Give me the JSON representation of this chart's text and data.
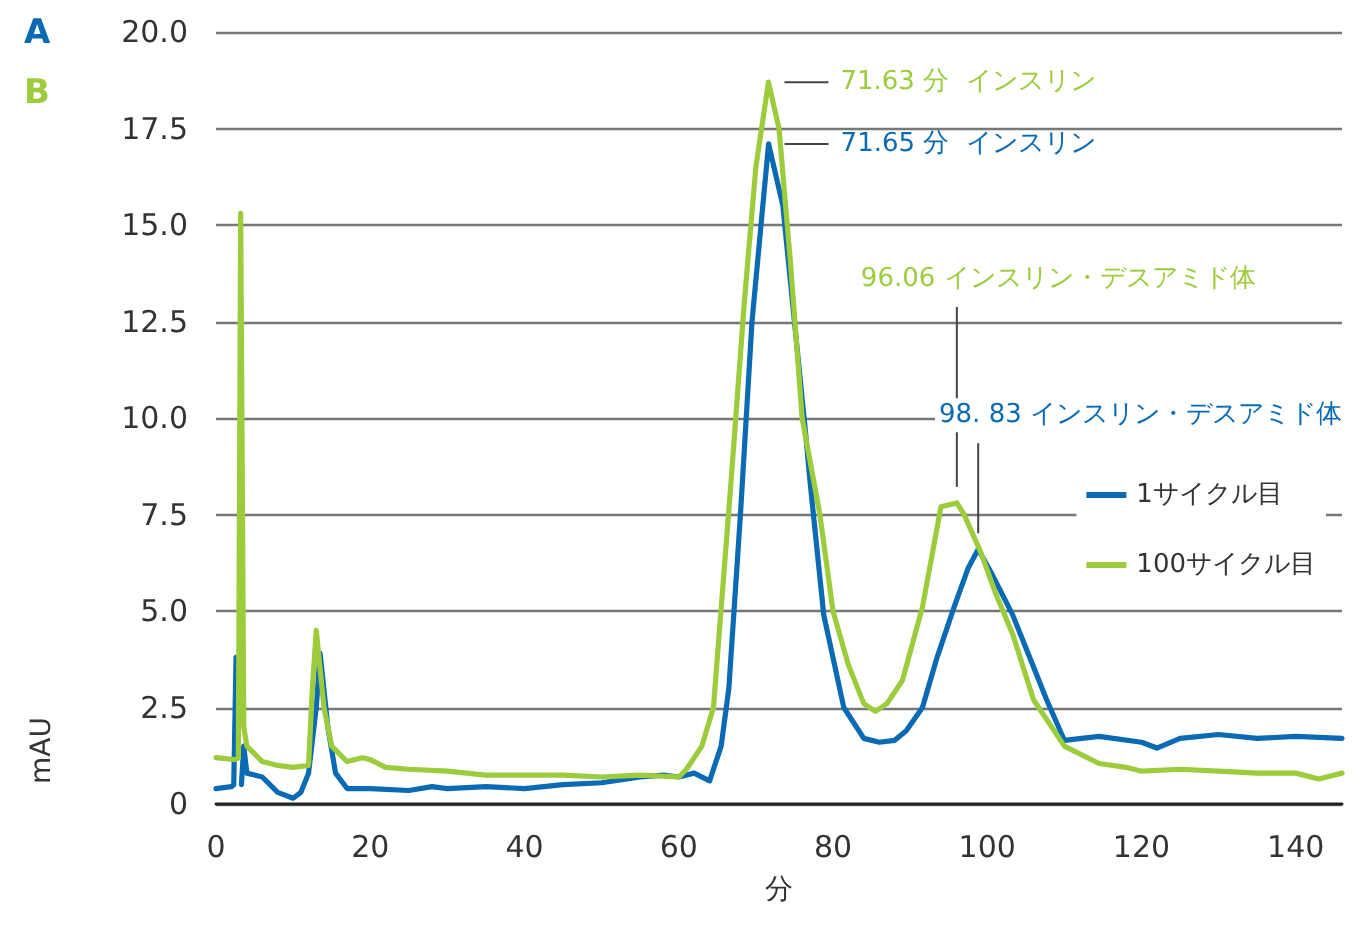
{
  "chart_data": {
    "type": "line",
    "xlabel": "分",
    "ylabel": "mAU",
    "xlim": [
      0,
      146
    ],
    "xticks": [
      0,
      20,
      40,
      60,
      80,
      100,
      120,
      140
    ],
    "ylim": [
      0,
      20
    ],
    "yticks": [
      {
        "value": 0,
        "label": "0"
      },
      {
        "value": 2.5,
        "label": "2.5"
      },
      {
        "value": 5,
        "label": "5.0"
      },
      {
        "value": 7.5,
        "label": "7.5"
      },
      {
        "value": 10,
        "label": "10.0"
      },
      {
        "value": 12.5,
        "label": "12.5"
      },
      {
        "value": 15,
        "label": "15.0"
      },
      {
        "value": 17.5,
        "label": "17.5"
      },
      {
        "value": 20,
        "label": "20.0"
      }
    ],
    "grid": "y",
    "legend": "right",
    "marker": "none",
    "line_style": "solid",
    "annotations": [
      "A",
      "B",
      {
        "text": "71.63 分  インスリン",
        "x": 71.63,
        "y": 18.7
      },
      {
        "text": "71.65 分  インスリン",
        "x": 71.65,
        "y": 17.1
      },
      {
        "text": "96.06 インスリン・デスアミド体",
        "x": 96.06,
        "y": 7.8
      },
      {
        "text": "98. 83 インスリン・デスアミド体",
        "x": 98.83,
        "y": 6.6
      }
    ],
    "series": [
      {
        "name": "1サイクル目",
        "color": "#0a6ab4",
        "x": [
          0,
          2,
          2.3,
          2.6,
          2.8,
          3.3,
          3.6,
          4,
          6,
          8,
          10,
          11,
          12,
          13,
          13.5,
          14.5,
          15.5,
          17,
          20,
          25,
          28,
          30,
          35,
          40,
          45,
          50,
          55,
          58,
          60,
          62,
          64,
          65.5,
          66.5,
          68,
          69.5,
          71.65,
          73.5,
          75,
          76.5,
          77,
          78.8,
          81.4,
          84,
          86,
          88,
          89.5,
          91.6,
          93.5,
          95.7,
          97.5,
          98.83,
          100.5,
          103.3,
          105.5,
          107.7,
          110,
          114.5,
          120,
          122,
          125,
          130,
          135,
          140,
          146
        ],
        "values": [
          0.4,
          0.45,
          0.5,
          3.8,
          null,
          0.5,
          1.5,
          0.8,
          0.7,
          0.3,
          0.15,
          0.3,
          0.8,
          2.5,
          3.9,
          2,
          0.8,
          0.4,
          0.4,
          0.35,
          0.45,
          0.4,
          0.45,
          0.4,
          0.5,
          0.55,
          0.7,
          0.75,
          0.7,
          0.8,
          0.6,
          1.5,
          3,
          7.5,
          12.5,
          17.1,
          15.5,
          12.5,
          9.5,
          8.4,
          4.9,
          2.5,
          1.7,
          1.6,
          1.65,
          1.9,
          2.5,
          3.8,
          5.1,
          6.1,
          6.6,
          6,
          4.9,
          3.8,
          2.7,
          1.65,
          1.75,
          1.6,
          1.45,
          1.7,
          1.8,
          1.7,
          1.75,
          1.7
        ]
      },
      {
        "name": "100サイクル目",
        "color": "#9ccc3c",
        "x": [
          0,
          2.5,
          2.9,
          3.2,
          3.6,
          4,
          6,
          8,
          10,
          12,
          12.5,
          13,
          14,
          15,
          17,
          19,
          20,
          22,
          25,
          30,
          35,
          40,
          45,
          50,
          55,
          60,
          61,
          63,
          64.5,
          66.8,
          68.5,
          70,
          71.63,
          73,
          74.5,
          76,
          78.3,
          80,
          82,
          84,
          85.5,
          87,
          89,
          91.6,
          94,
          96.06,
          97,
          99.2,
          101,
          103.3,
          106,
          110,
          114.5,
          118,
          120,
          125,
          130,
          135,
          140,
          143,
          146
        ],
        "values": [
          1.2,
          1.15,
          1.2,
          15.3,
          2,
          1.5,
          1.1,
          1,
          0.95,
          1,
          3,
          4.5,
          2.5,
          1.5,
          1.1,
          1.2,
          1.15,
          0.95,
          0.9,
          0.85,
          0.75,
          0.75,
          0.75,
          0.7,
          0.75,
          0.7,
          0.9,
          1.5,
          2.5,
          8.4,
          13,
          16.5,
          18.7,
          17.5,
          14,
          10,
          7.5,
          5,
          3.6,
          2.6,
          2.4,
          2.6,
          3.2,
          5.1,
          7.7,
          7.8,
          7.5,
          6.5,
          5.5,
          4.4,
          2.7,
          1.5,
          1.05,
          0.95,
          0.85,
          0.9,
          0.85,
          0.8,
          0.8,
          0.65,
          0.8
        ]
      }
    ]
  }
}
